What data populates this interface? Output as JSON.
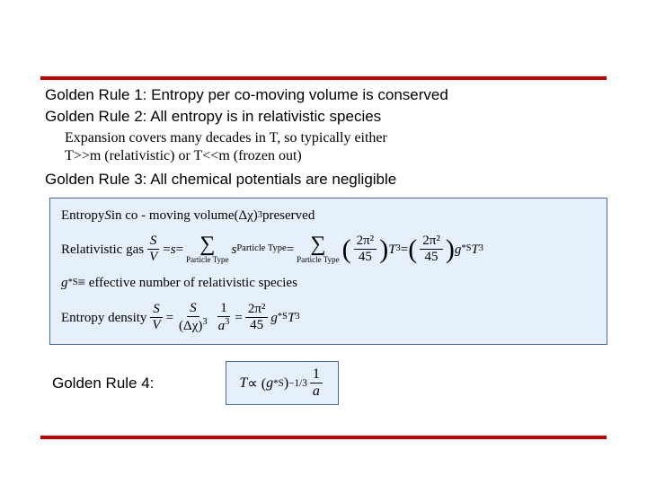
{
  "colors": {
    "rule_bar": "#c40000",
    "eq_box_bg": "#e6f0fa",
    "eq_box_border": "#4a6aa0",
    "text": "#000000",
    "page_bg": "#ffffff"
  },
  "typography": {
    "body_font": "Arial",
    "equation_font": "Times New Roman",
    "rule_fontsize_pt": 13,
    "expansion_fontsize_pt": 12,
    "eq_fontsize_pt": 11
  },
  "rule1": "Golden Rule 1: Entropy per co-moving volume is conserved",
  "rule2": "Golden Rule 2: All entropy is in relativistic species",
  "expansion_l1": "Expansion covers many decades in T, so typically either",
  "expansion_l2": "T>>m (relativistic) or T<<m (frozen out)",
  "rule3": "Golden Rule 3: All chemical potentials are negligible",
  "eq": {
    "row1_pre": "Entropy ",
    "row1_S": "S",
    "row1_mid": " in co - moving volume ",
    "row1_delta": "(Δχ)",
    "row1_exp": "3",
    "row1_post": " preserved",
    "row2_label": "Relativistic gas  ",
    "row2_frac_num": "S",
    "row2_frac_den": "V",
    "row2_eq1": " = ",
    "row2_s": "s",
    "row2_eq2": " = ",
    "row2_sum_sub": "Particle Type",
    "row2_sterm": "s",
    "row2_sterm_sub": "Particle Type",
    "row2_eq3": "  =  ",
    "row2_paren_num": "2π²",
    "row2_paren_den": "45",
    "row2_T": "T",
    "row2_T_exp": "3",
    "row2_eq4": " = ",
    "row2_final_num": "2π²",
    "row2_final_den": "45",
    "row2_g": " g",
    "row2_g_sub": "*S",
    "row2_Tb": "T",
    "row2_Tb_exp": "3",
    "row3_g": "g",
    "row3_g_sub": "*S",
    "row3_def": " ≡  effective number of relativistic species",
    "row4_label": "Entropy density  ",
    "row4_num1": "S",
    "row4_den1": "V",
    "row4_eq1": " = ",
    "row4_num2": "S",
    "row4_den2_a": "(Δχ)",
    "row4_den2_exp": "3",
    "row4_mid": " ",
    "row4_num3": "1",
    "row4_den3_a": "a",
    "row4_den3_exp": "3",
    "row4_eq2": " = ",
    "row4_num4": "2π²",
    "row4_den4": "45",
    "row4_g": " g",
    "row4_g_sub": "*S",
    "row4_T": "T",
    "row4_T_exp": "3"
  },
  "rule4_label": "Golden Rule 4:",
  "rule4": {
    "T": "T",
    "prop": " ∝ (",
    "g": "g",
    "g_sub": "*S",
    "close": ")",
    "exp1": "−1/3",
    "sep": " ",
    "num": "1",
    "den": "a"
  }
}
